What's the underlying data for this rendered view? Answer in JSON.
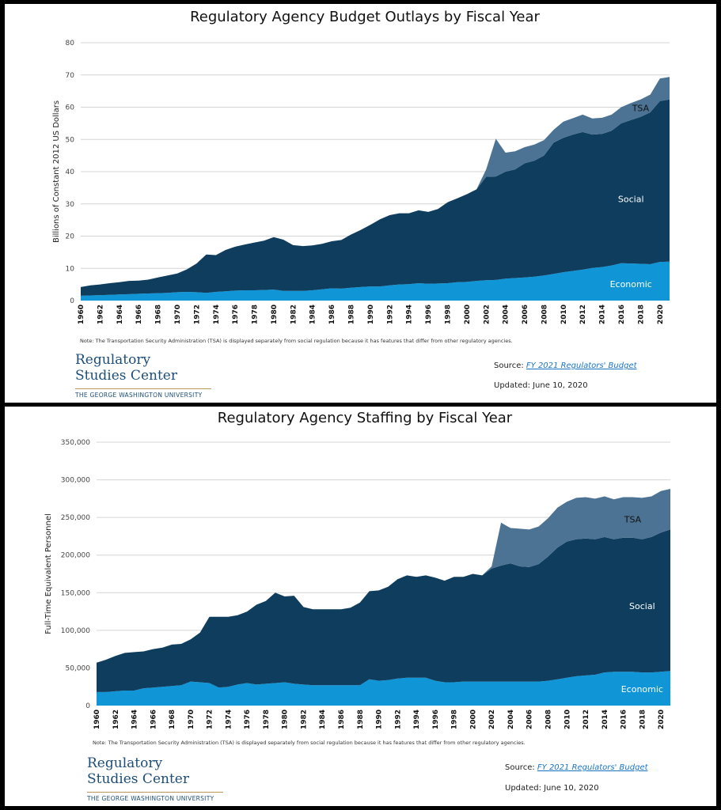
{
  "colors": {
    "economic": "#1096d6",
    "social": "#0f3d5e",
    "tsa": "#4c7393",
    "grid": "#d4d4d4"
  },
  "chart_data": [
    {
      "type": "area",
      "stacked": true,
      "title": "Regulatory Agency Budget Outlays by Fiscal Year",
      "ylabel": "Billions of Constant 2012 US Dollars",
      "xlabel": "",
      "ylim": [
        0,
        80
      ],
      "yticks": [
        0,
        10,
        20,
        30,
        40,
        50,
        60,
        70,
        80
      ],
      "ytick_labels": [
        "0",
        "10",
        "20",
        "30",
        "40",
        "50",
        "60",
        "70",
        "80"
      ],
      "grid": true,
      "x": [
        1960,
        1961,
        1962,
        1963,
        1964,
        1965,
        1966,
        1967,
        1968,
        1969,
        1970,
        1971,
        1972,
        1973,
        1974,
        1975,
        1976,
        1977,
        1978,
        1979,
        1980,
        1981,
        1982,
        1983,
        1984,
        1985,
        1986,
        1987,
        1988,
        1989,
        1990,
        1991,
        1992,
        1993,
        1994,
        1995,
        1996,
        1997,
        1998,
        1999,
        2000,
        2001,
        2002,
        2003,
        2004,
        2005,
        2006,
        2007,
        2008,
        2009,
        2010,
        2011,
        2012,
        2013,
        2014,
        2015,
        2016,
        2017,
        2018,
        2019,
        2020,
        2021
      ],
      "xtick_labels": [
        "1960",
        "1962",
        "1964",
        "1966",
        "1968",
        "1970",
        "1972",
        "1974",
        "1976",
        "1978",
        "1980",
        "1982",
        "1984",
        "1986",
        "1988",
        "1990",
        "1992",
        "1994",
        "1996",
        "1998",
        "2000",
        "2002",
        "2004",
        "2006",
        "2008",
        "2010",
        "2012",
        "2014",
        "2016",
        "2018",
        "2020"
      ],
      "series": [
        {
          "name": "Economic",
          "values": [
            1.5,
            1.6,
            1.7,
            1.8,
            1.9,
            2.0,
            2.1,
            2.2,
            2.3,
            2.4,
            2.6,
            2.7,
            2.6,
            2.4,
            2.7,
            2.9,
            3.1,
            3.2,
            3.2,
            3.3,
            3.4,
            3.0,
            3.0,
            3.0,
            3.2,
            3.5,
            3.8,
            3.7,
            4.0,
            4.2,
            4.4,
            4.4,
            4.7,
            5.0,
            5.1,
            5.4,
            5.2,
            5.3,
            5.4,
            5.7,
            5.8,
            6.1,
            6.3,
            6.4,
            6.8,
            7.0,
            7.2,
            7.4,
            7.8,
            8.3,
            8.8,
            9.2,
            9.6,
            10.1,
            10.4,
            10.9,
            11.6,
            11.5,
            11.4,
            11.3,
            12.0,
            12.1
          ]
        },
        {
          "name": "Social",
          "values": [
            2.7,
            3.1,
            3.3,
            3.6,
            3.8,
            4.1,
            4.1,
            4.3,
            4.9,
            5.4,
            5.8,
            7.0,
            8.9,
            11.9,
            11.4,
            12.8,
            13.6,
            14.2,
            14.8,
            15.3,
            16.3,
            15.9,
            14.2,
            13.9,
            13.9,
            14.1,
            14.6,
            15.1,
            16.5,
            17.7,
            19.1,
            20.8,
            21.8,
            22.1,
            22.0,
            22.6,
            22.3,
            23.1,
            25.1,
            26.0,
            27.2,
            28.4,
            32.1,
            32.1,
            33.2,
            33.7,
            35.4,
            36.0,
            37.2,
            40.7,
            41.7,
            42.3,
            42.7,
            41.4,
            41.3,
            41.8,
            43.4,
            44.5,
            45.6,
            47.1,
            49.9,
            50.3
          ]
        },
        {
          "name": "TSA",
          "values": [
            0,
            0,
            0,
            0,
            0,
            0,
            0,
            0,
            0,
            0,
            0,
            0,
            0,
            0,
            0,
            0,
            0,
            0,
            0,
            0,
            0,
            0,
            0,
            0,
            0,
            0,
            0,
            0,
            0,
            0,
            0,
            0,
            0,
            0,
            0,
            0,
            0,
            0,
            0,
            0,
            0,
            0,
            2.3,
            11.7,
            5.9,
            5.6,
            5.0,
            5.0,
            4.8,
            4.0,
            5.0,
            5.1,
            5.4,
            5.0,
            5.0,
            5.0,
            5.0,
            5.3,
            5.4,
            5.5,
            7.0,
            7.0
          ]
        }
      ],
      "annotations": [
        "TSA",
        "Social",
        "Economic"
      ]
    },
    {
      "type": "area",
      "stacked": true,
      "title": "Regulatory Agency Staffing by Fiscal Year",
      "ylabel": "Full-Time Equivalent Personnel",
      "xlabel": "",
      "ylim": [
        0,
        350000
      ],
      "yticks": [
        0,
        50000,
        100000,
        150000,
        200000,
        250000,
        300000,
        350000
      ],
      "ytick_labels": [
        "0",
        "50,000",
        "100,000",
        "150,000",
        "200,000",
        "250,000",
        "300,000",
        "350,000"
      ],
      "grid": true,
      "x": [
        1960,
        1961,
        1962,
        1963,
        1964,
        1965,
        1966,
        1967,
        1968,
        1969,
        1970,
        1971,
        1972,
        1973,
        1974,
        1975,
        1976,
        1977,
        1978,
        1979,
        1980,
        1981,
        1982,
        1983,
        1984,
        1985,
        1986,
        1987,
        1988,
        1989,
        1990,
        1991,
        1992,
        1993,
        1994,
        1995,
        1996,
        1997,
        1998,
        1999,
        2000,
        2001,
        2002,
        2003,
        2004,
        2005,
        2006,
        2007,
        2008,
        2009,
        2010,
        2011,
        2012,
        2013,
        2014,
        2015,
        2016,
        2017,
        2018,
        2019,
        2020,
        2021
      ],
      "xtick_labels": [
        "1960",
        "1962",
        "1964",
        "1966",
        "1968",
        "1970",
        "1972",
        "1974",
        "1976",
        "1978",
        "1980",
        "1982",
        "1984",
        "1986",
        "1988",
        "1990",
        "1992",
        "1994",
        "1996",
        "1998",
        "2000",
        "2002",
        "2004",
        "2006",
        "2008",
        "2010",
        "2012",
        "2014",
        "2016",
        "2018",
        "2020"
      ],
      "series": [
        {
          "name": "Economic",
          "values": [
            18000,
            18000,
            19000,
            20000,
            20000,
            23000,
            24000,
            25000,
            26000,
            27000,
            32000,
            31000,
            30000,
            24000,
            25000,
            28000,
            30000,
            28000,
            29000,
            30000,
            31000,
            29000,
            28000,
            27000,
            27000,
            27000,
            27000,
            27000,
            27000,
            35000,
            33000,
            34000,
            36000,
            37000,
            37000,
            37000,
            33000,
            31000,
            31000,
            32000,
            32000,
            32000,
            32000,
            32000,
            32000,
            32000,
            32000,
            32000,
            33000,
            35000,
            37000,
            39000,
            40000,
            41000,
            44000,
            45000,
            45000,
            45000,
            44000,
            44000,
            45000,
            46000
          ]
        },
        {
          "name": "Social",
          "values": [
            39000,
            43000,
            47000,
            50000,
            51000,
            49000,
            51000,
            52000,
            55000,
            55000,
            56000,
            66000,
            88000,
            94000,
            93000,
            92000,
            95000,
            106000,
            110000,
            120000,
            114000,
            117000,
            103000,
            101000,
            101000,
            101000,
            101000,
            103000,
            110000,
            117000,
            120000,
            124000,
            132000,
            136000,
            134000,
            136000,
            137000,
            135000,
            140000,
            139000,
            143000,
            141000,
            150000,
            154000,
            157000,
            153000,
            152000,
            156000,
            165000,
            175000,
            181000,
            182000,
            182000,
            180000,
            180000,
            176000,
            178000,
            178000,
            177000,
            180000,
            185000,
            188000
          ]
        },
        {
          "name": "TSA",
          "values": [
            0,
            0,
            0,
            0,
            0,
            0,
            0,
            0,
            0,
            0,
            0,
            0,
            0,
            0,
            0,
            0,
            0,
            0,
            0,
            0,
            0,
            0,
            0,
            0,
            0,
            0,
            0,
            0,
            0,
            0,
            0,
            0,
            0,
            0,
            0,
            0,
            0,
            0,
            0,
            0,
            0,
            0,
            3000,
            57000,
            47000,
            50000,
            50000,
            50000,
            51000,
            53000,
            53000,
            55000,
            55000,
            54000,
            54000,
            53000,
            54000,
            54000,
            55000,
            54000,
            55000,
            54000
          ]
        }
      ],
      "annotations": [
        "TSA",
        "Social",
        "Economic"
      ]
    }
  ],
  "panels": [
    {
      "note": "Note: The Transportation Security Administration (TSA) is displayed separately from social regulation because it has features that differ from other regulatory agencies.",
      "logo": {
        "line1": "Regulatory",
        "line2": "Studies Center",
        "line3": "THE GEORGE WASHINGTON UNIVERSITY"
      },
      "source_label": "Source:",
      "source_link": "FY 2021 Regulators' Budget",
      "updated": "Updated: June 10, 2020"
    },
    {
      "note": "Note: The Transportation Security Administration (TSA) is displayed separately from social regulation because it has features that differ from other regulatory agencies.",
      "logo": {
        "line1": "Regulatory",
        "line2": "Studies Center",
        "line3": "THE GEORGE WASHINGTON UNIVERSITY"
      },
      "source_label": "Source:",
      "source_link": "FY 2021 Regulators' Budget",
      "updated": "Updated: June 10, 2020"
    }
  ]
}
